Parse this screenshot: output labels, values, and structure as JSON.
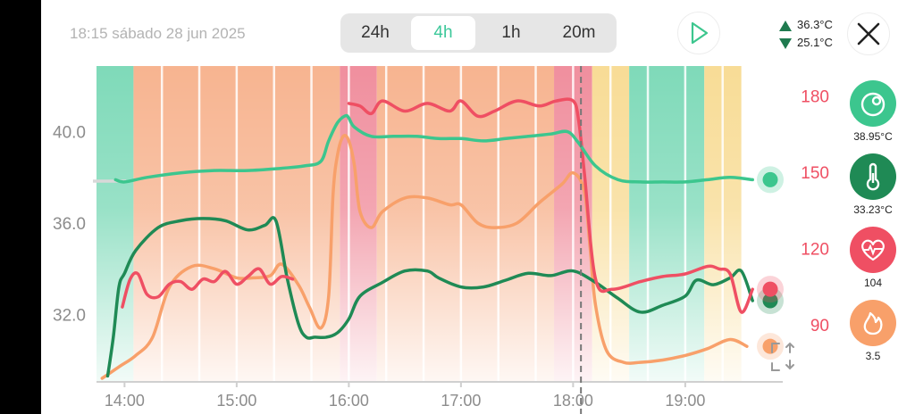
{
  "header": {
    "datetime": "18:15 sábado 28 jun 2025",
    "ranges": [
      "24h",
      "4h",
      "1h",
      "20m"
    ],
    "active_range": "4h",
    "temp_max": "36.3°C",
    "temp_min": "25.1°C"
  },
  "metrics": [
    {
      "name": "core-temp",
      "icon": "core-temp-icon",
      "value": "38.95°C",
      "color": "#3cc68e"
    },
    {
      "name": "skin-temp",
      "icon": "thermometer-icon",
      "value": "33.23°C",
      "color": "#1f8a55"
    },
    {
      "name": "heart-rate",
      "icon": "heart-rate-icon",
      "value": "104",
      "color": "#ef4f63"
    },
    {
      "name": "heat-strain",
      "icon": "flame-icon",
      "value": "3.5",
      "color": "#f8a06a"
    }
  ],
  "chart_data": {
    "type": "line",
    "x_axis": {
      "range_hours": [
        13.75,
        19.75
      ],
      "tick_labels": [
        "14:00",
        "15:00",
        "16:00",
        "17:00",
        "18:00",
        "19:00"
      ],
      "tick_hours": [
        14,
        15,
        16,
        17,
        18,
        19
      ]
    },
    "y_left": {
      "range": [
        29.2,
        42.8
      ],
      "ticks": [
        32.0,
        36.0,
        40.0
      ],
      "tick_labels": [
        "32.0",
        "36.0",
        "40.0"
      ]
    },
    "y_right": {
      "range": [
        69,
        191
      ],
      "ticks": [
        90,
        120,
        150,
        180
      ],
      "tick_labels": [
        "90",
        "120",
        "150",
        "180"
      ]
    },
    "marker_hour": 18.07,
    "zones": [
      {
        "from": 13.75,
        "to": 14.08,
        "color": "#7fdab9"
      },
      {
        "from": 14.08,
        "to": 15.92,
        "color": "#f7b490"
      },
      {
        "from": 15.92,
        "to": 16.25,
        "color": "#f08f9e"
      },
      {
        "from": 16.25,
        "to": 17.83,
        "color": "#f7b490"
      },
      {
        "from": 17.83,
        "to": 18.17,
        "color": "#f08f9e"
      },
      {
        "from": 18.17,
        "to": 18.5,
        "color": "#f8dc96"
      },
      {
        "from": 18.5,
        "to": 19.17,
        "color": "#7fdab9"
      },
      {
        "from": 19.17,
        "to": 19.5,
        "color": "#f8dc96"
      }
    ],
    "series": [
      {
        "name": "core-temp",
        "axis": "left",
        "color": "#3cc68e",
        "width": 3.5,
        "x": [
          13.92,
          14.0,
          14.2,
          14.5,
          14.8,
          15.1,
          15.4,
          15.6,
          15.75,
          15.82,
          15.9,
          15.97,
          16.0,
          16.05,
          16.2,
          16.4,
          16.6,
          16.8,
          17.0,
          17.2,
          17.4,
          17.6,
          17.8,
          17.95,
          18.05,
          18.2,
          18.4,
          18.6,
          18.8,
          19.0,
          19.2,
          19.4,
          19.6
        ],
        "y": [
          37.9,
          37.8,
          38.0,
          38.2,
          38.3,
          38.3,
          38.4,
          38.5,
          38.7,
          39.6,
          40.4,
          40.7,
          40.6,
          40.2,
          39.8,
          39.8,
          39.8,
          39.7,
          39.7,
          39.6,
          39.7,
          39.8,
          39.9,
          40.0,
          39.5,
          38.5,
          37.9,
          37.8,
          37.8,
          37.8,
          37.9,
          38.0,
          37.9
        ]
      },
      {
        "name": "skin-temp",
        "axis": "left",
        "color": "#1f8a55",
        "width": 3.5,
        "x": [
          13.85,
          13.9,
          13.95,
          14.0,
          14.1,
          14.3,
          14.5,
          14.7,
          14.9,
          15.1,
          15.25,
          15.35,
          15.45,
          15.55,
          15.62,
          15.7,
          15.8,
          15.9,
          16.0,
          16.1,
          16.3,
          16.5,
          16.7,
          16.8,
          17.0,
          17.2,
          17.4,
          17.6,
          17.8,
          18.0,
          18.2,
          18.4,
          18.6,
          18.8,
          19.0,
          19.1,
          19.25,
          19.4,
          19.5,
          19.6
        ],
        "y": [
          29.3,
          31.0,
          33.2,
          33.8,
          34.8,
          35.8,
          36.1,
          36.2,
          36.1,
          35.7,
          35.9,
          36.1,
          33.6,
          31.6,
          31.0,
          31.0,
          31.0,
          31.2,
          31.8,
          32.8,
          33.4,
          33.9,
          33.9,
          33.6,
          33.2,
          33.2,
          33.5,
          33.8,
          33.7,
          33.9,
          33.4,
          32.7,
          32.1,
          32.4,
          32.8,
          33.5,
          33.3,
          33.6,
          33.9,
          32.6
        ]
      },
      {
        "name": "heart-rate",
        "axis": "right",
        "color": "#ef4f63",
        "width": 3.5,
        "x": [
          13.98,
          14.05,
          14.12,
          14.2,
          14.3,
          14.4,
          14.5,
          14.6,
          14.7,
          14.8,
          14.9,
          15.0,
          15.1,
          15.2,
          15.3,
          15.4,
          15.5,
          16.0,
          16.1,
          16.2,
          16.3,
          16.5,
          16.7,
          16.9,
          17.0,
          17.15,
          17.3,
          17.5,
          17.7,
          17.85,
          18.0,
          18.05,
          18.1,
          18.2,
          18.35,
          18.6,
          18.8,
          19.0,
          19.2,
          19.3,
          19.4,
          19.5,
          19.6
        ],
        "y": [
          97,
          108,
          110,
          102,
          101,
          106,
          107,
          104,
          108,
          107,
          111,
          106,
          109,
          112,
          106,
          109,
          108,
          177,
          176,
          173,
          178,
          174,
          177,
          174,
          178,
          172,
          174,
          178,
          176,
          178,
          178,
          170,
          150,
          108,
          104,
          107,
          109,
          110,
          113,
          112,
          110,
          95,
          104
        ]
      },
      {
        "name": "heat-strain",
        "axis": "left",
        "color": "#f8a06a",
        "width": 3.5,
        "x": [
          13.8,
          13.95,
          14.1,
          14.25,
          14.4,
          14.6,
          14.8,
          15.0,
          15.15,
          15.3,
          15.4,
          15.55,
          15.65,
          15.75,
          15.82,
          15.86,
          15.9,
          15.95,
          16.0,
          16.05,
          16.1,
          16.2,
          16.3,
          16.5,
          16.7,
          16.9,
          17.0,
          17.15,
          17.3,
          17.5,
          17.7,
          17.9,
          18.0,
          18.1,
          18.15,
          18.2,
          18.3,
          18.45,
          18.6,
          18.8,
          19.0,
          19.2,
          19.4,
          19.55
        ],
        "y": [
          29.2,
          29.7,
          30.2,
          31.0,
          33.2,
          34.1,
          34.0,
          33.6,
          33.6,
          33.7,
          34.2,
          33.3,
          32.3,
          31.4,
          32.8,
          37.3,
          39.0,
          39.8,
          39.6,
          38.5,
          36.5,
          35.8,
          36.5,
          37.1,
          37.1,
          36.8,
          36.8,
          36.0,
          35.8,
          36.0,
          36.9,
          37.7,
          38.2,
          37.4,
          35.0,
          32.4,
          30.4,
          29.9,
          29.9,
          30.0,
          30.2,
          30.5,
          30.9,
          30.6
        ]
      }
    ]
  }
}
